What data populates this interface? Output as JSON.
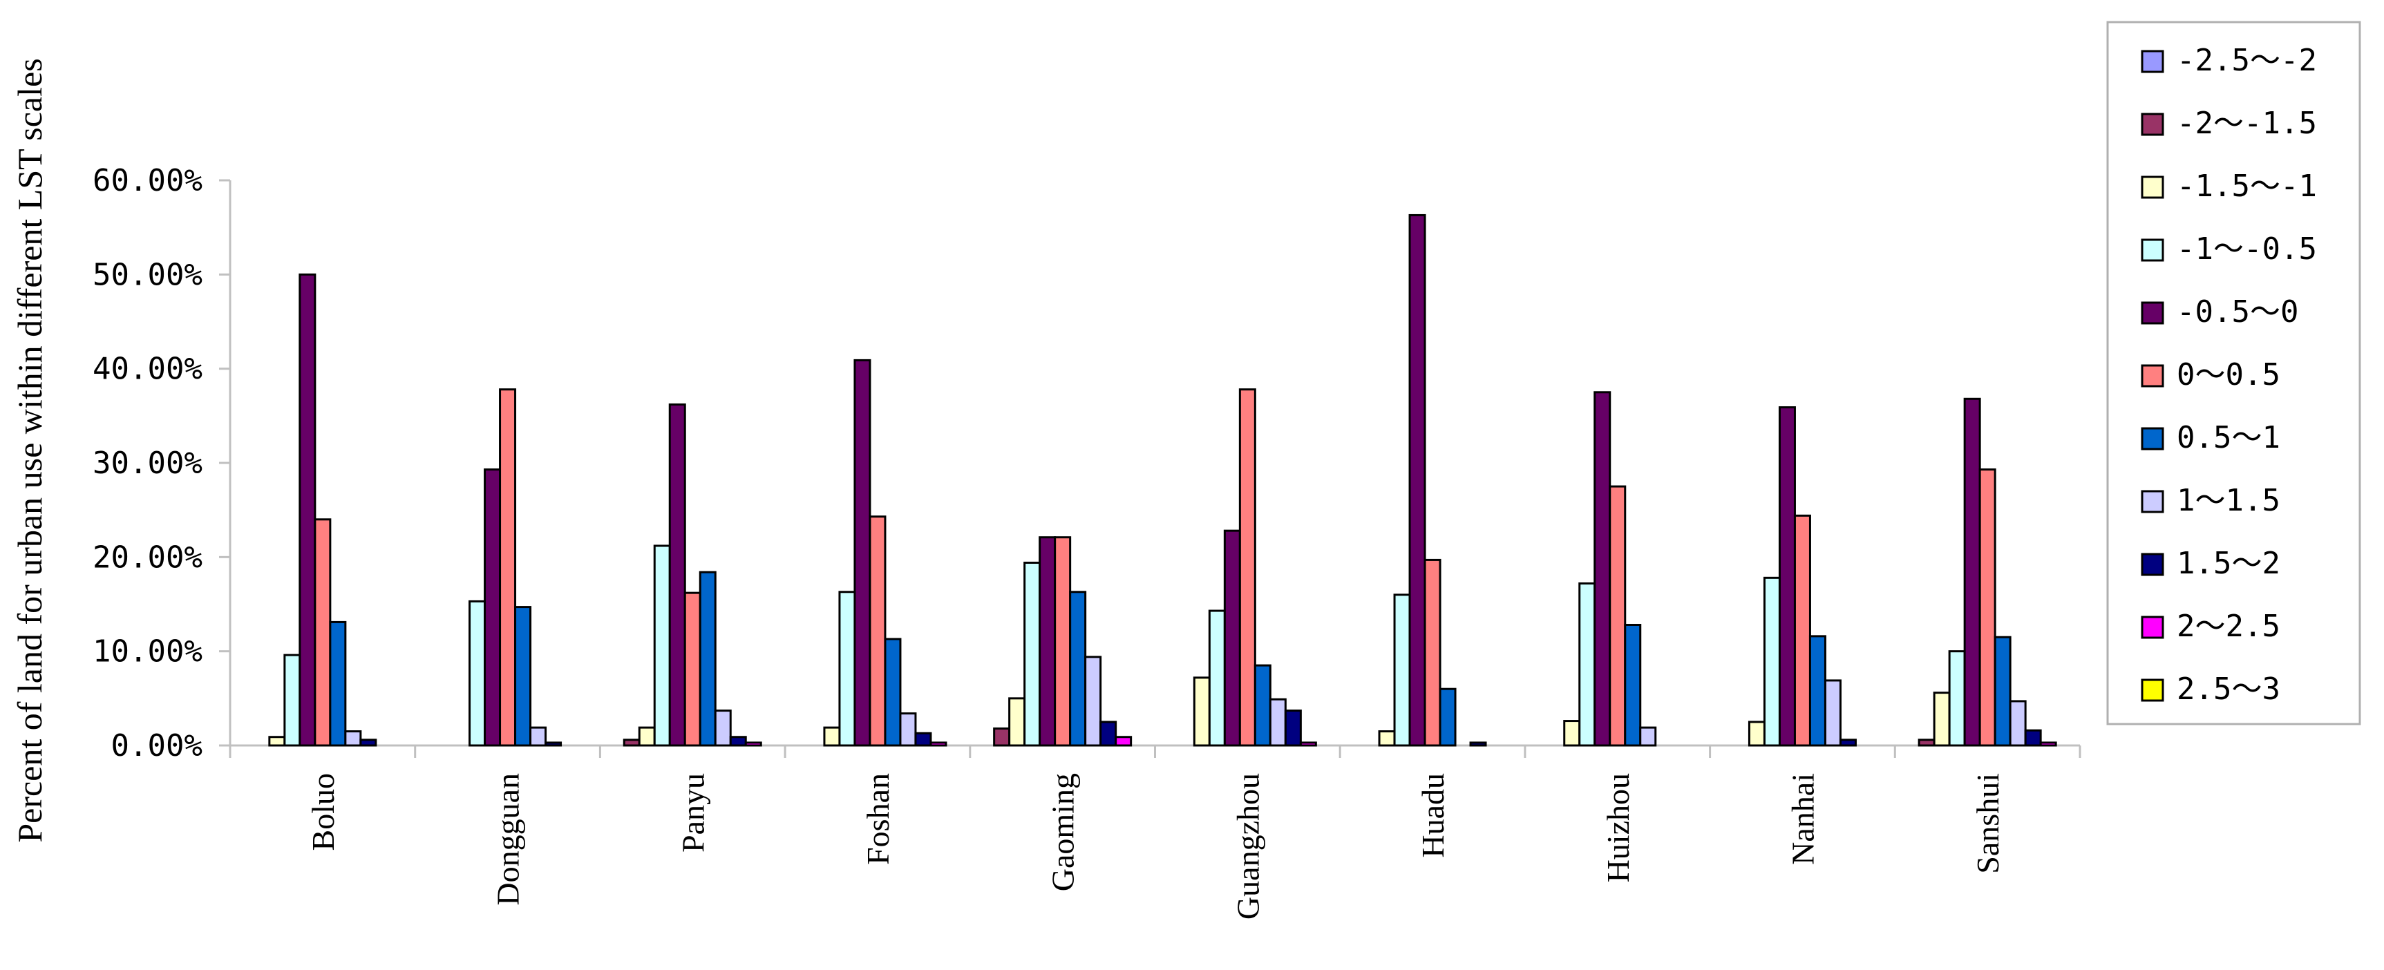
{
  "chart_data": {
    "type": "bar",
    "ylabel": "Percent of land for urban use within different LST scales",
    "xlabel": "",
    "ylim": [
      0,
      60
    ],
    "yticks": [
      "0.00%",
      "10.00%",
      "20.00%",
      "30.00%",
      "40.00%",
      "50.00%",
      "60.00%"
    ],
    "ytick_values": [
      0,
      10,
      20,
      30,
      40,
      50,
      60
    ],
    "categories": [
      "Boluo",
      "Dongguan",
      "Panyu",
      "Foshan",
      "Gaoming",
      "Guangzhou",
      "Huadu",
      "Huizhou",
      "Nanhai",
      "Sanshui"
    ],
    "legend_position": "right",
    "grid": false,
    "series": [
      {
        "name": "-2.5～-2",
        "color": "#9999FF",
        "values": [
          0,
          0,
          0,
          0,
          0,
          0,
          0,
          0,
          0,
          0
        ]
      },
      {
        "name": "-2～-1.5",
        "color": "#993366",
        "values": [
          0,
          0,
          0.6,
          0,
          1.8,
          0,
          0,
          0,
          0,
          0.6
        ]
      },
      {
        "name": "-1.5～-1",
        "color": "#FFFFCC",
        "values": [
          0.9,
          0,
          1.9,
          1.9,
          5.0,
          7.2,
          1.5,
          2.6,
          2.5,
          5.6
        ]
      },
      {
        "name": "-1～-0.5",
        "color": "#CCFFFF",
        "values": [
          9.6,
          15.3,
          21.2,
          16.3,
          19.4,
          14.3,
          16.0,
          17.2,
          17.8,
          10.0
        ]
      },
      {
        "name": "-0.5～0",
        "color": "#660066",
        "values": [
          50.0,
          29.3,
          36.2,
          40.9,
          22.1,
          22.8,
          56.3,
          37.5,
          35.9,
          36.8
        ]
      },
      {
        "name": "0～0.5",
        "color": "#FF8080",
        "values": [
          24.0,
          37.8,
          16.2,
          24.3,
          22.1,
          37.8,
          19.7,
          27.5,
          24.4,
          29.3
        ]
      },
      {
        "name": "0.5～1",
        "color": "#0066CC",
        "values": [
          13.1,
          14.7,
          18.4,
          11.3,
          16.3,
          8.5,
          6.0,
          12.8,
          11.6,
          11.5
        ]
      },
      {
        "name": "1～1.5",
        "color": "#CCCCFF",
        "values": [
          1.5,
          1.9,
          3.7,
          3.4,
          9.4,
          4.9,
          0,
          1.9,
          6.9,
          4.7
        ]
      },
      {
        "name": "1.5～2",
        "color": "#000080",
        "values": [
          0.6,
          0.3,
          0.9,
          1.3,
          2.5,
          3.7,
          0.3,
          0,
          0.6,
          1.6
        ]
      },
      {
        "name": "2～2.5",
        "color": "#FF00FF",
        "values": [
          0,
          0,
          0.3,
          0.3,
          0.9,
          0.3,
          0,
          0,
          0,
          0.3
        ]
      },
      {
        "name": "2.5～3",
        "color": "#FFFF00",
        "values": [
          0,
          0,
          0,
          0,
          0,
          0,
          0,
          0,
          0,
          0
        ]
      }
    ]
  }
}
